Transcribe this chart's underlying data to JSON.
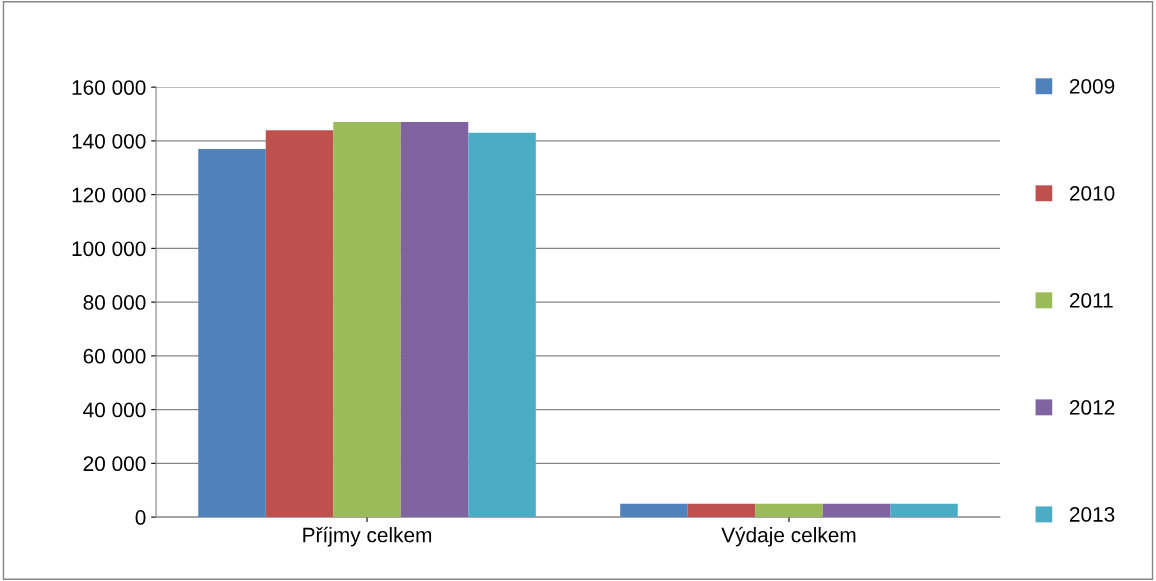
{
  "chart_data": {
    "type": "bar",
    "categories": [
      "Příjmy celkem",
      "Výdaje celkem"
    ],
    "series": [
      {
        "name": "2009",
        "color": "#4f81bd",
        "values": [
          137000,
          5000
        ]
      },
      {
        "name": "2010",
        "color": "#c0504d",
        "values": [
          144000,
          5000
        ]
      },
      {
        "name": "2011",
        "color": "#9bbb59",
        "values": [
          147000,
          5000
        ]
      },
      {
        "name": "2012",
        "color": "#8064a2",
        "values": [
          147000,
          5000
        ]
      },
      {
        "name": "2013",
        "color": "#4bacc6",
        "values": [
          143000,
          5000
        ]
      }
    ],
    "ylim": [
      0,
      160000
    ],
    "yticks": [
      {
        "value": 0,
        "label": "0"
      },
      {
        "value": 20000,
        "label": "20 000"
      },
      {
        "value": 40000,
        "label": "40 000"
      },
      {
        "value": 60000,
        "label": "60 000"
      },
      {
        "value": 80000,
        "label": "80 000"
      },
      {
        "value": 100000,
        "label": "100 000"
      },
      {
        "value": 120000,
        "label": "120 000"
      },
      {
        "value": 140000,
        "label": "140 000"
      },
      {
        "value": 160000,
        "label": "160 000"
      }
    ],
    "grid": "y",
    "legend": "right"
  }
}
